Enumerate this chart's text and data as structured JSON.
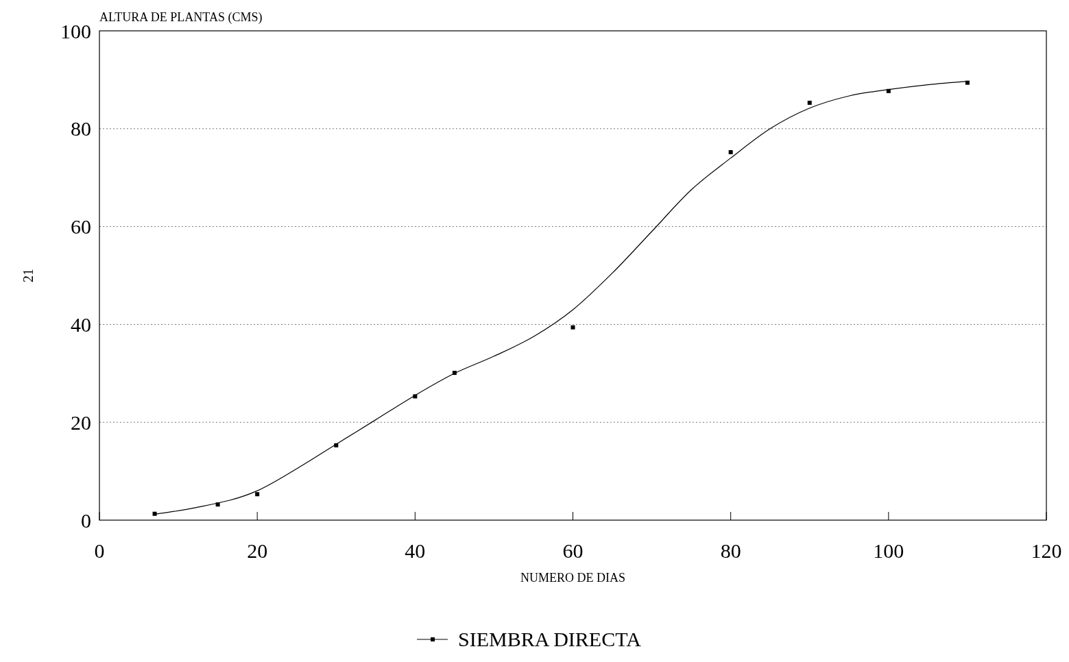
{
  "chart_data": {
    "type": "scatter",
    "xlabel": "NUMERO DE DIAS",
    "ylabel": "ALTURA DE PLANTAS (CMS)",
    "annotations": [
      "21"
    ],
    "xlim": [
      0,
      120
    ],
    "xticks": [
      0,
      20,
      40,
      60,
      80,
      100,
      120
    ],
    "ylim": [
      0,
      100
    ],
    "yticks": [
      0,
      20,
      40,
      60,
      80,
      100
    ],
    "grid": "y",
    "legend": "bottom",
    "series": [
      {
        "name": "SIEMBRA DIRECTA",
        "color": "#000000",
        "marker": "square",
        "x": [
          7,
          15,
          20,
          30,
          40,
          45,
          60,
          80,
          90,
          100,
          110
        ],
        "values": [
          1.3,
          3.2,
          5.3,
          15.3,
          25.3,
          30.1,
          39.4,
          75.2,
          85.3,
          87.7,
          89.4
        ]
      },
      {
        "color": "#000000",
        "type": "line",
        "line_style": "solid",
        "x": [
          7,
          12,
          20,
          25,
          30,
          35,
          40,
          45,
          50,
          55,
          60,
          65,
          70,
          75,
          80,
          85,
          90,
          95,
          100,
          105,
          110
        ],
        "values": [
          1.2,
          2.5,
          6,
          10.5,
          15.5,
          20.5,
          25.5,
          30,
          33.5,
          37.5,
          43,
          50.5,
          59,
          67.5,
          74,
          80,
          84.2,
          86.7,
          88,
          89,
          89.7
        ]
      }
    ]
  }
}
